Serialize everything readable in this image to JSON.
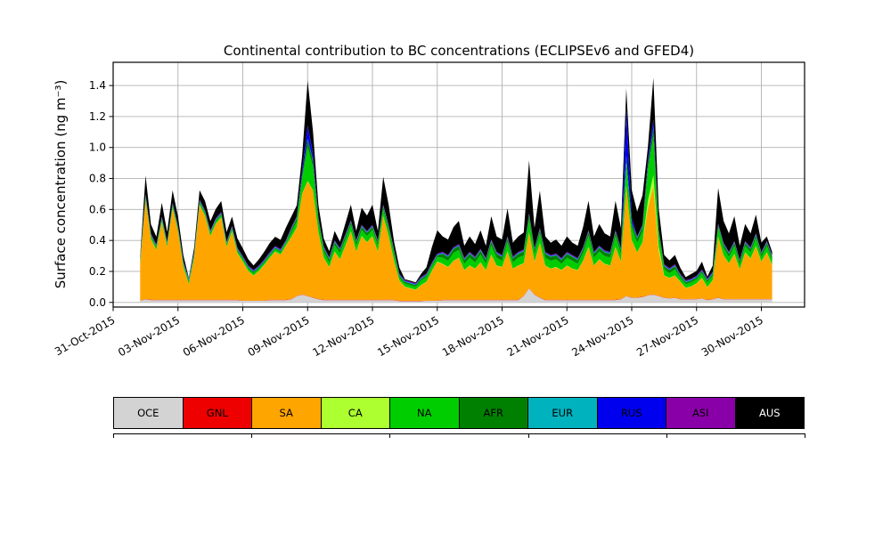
{
  "figure": {
    "title": "Continental contribution to BC concentrations (ECLIPSEv6 and GFED4)",
    "ylabel": "Surface concentration (ng m⁻³)"
  },
  "chart_data": {
    "type": "area",
    "stacked": true,
    "title": "Continental contribution to BC concentrations (ECLIPSEv6 and GFED4)",
    "xlabel": "",
    "ylabel": "Surface concentration (ng m⁻³)",
    "x_unit": "days since 31-Oct-2015 00:00",
    "xlim": [
      0,
      32
    ],
    "ylim": [
      -0.03,
      1.55
    ],
    "grid": true,
    "legend_position": "bottom",
    "yticks": [
      0.0,
      0.2,
      0.4,
      0.6,
      0.8,
      1.0,
      1.2,
      1.4
    ],
    "xticks": {
      "positions": [
        0,
        3,
        6,
        9,
        12,
        15,
        18,
        21,
        24,
        27,
        30
      ],
      "labels": [
        "31-Oct-2015",
        "03-Nov-2015",
        "06-Nov-2015",
        "09-Nov-2015",
        "12-Nov-2015",
        "15-Nov-2015",
        "18-Nov-2015",
        "21-Nov-2015",
        "24-Nov-2015",
        "27-Nov-2015",
        "30-Nov-2015"
      ]
    },
    "legend": [
      {
        "label": "OCE",
        "color": "#d3d3d3",
        "text_color": "#000000"
      },
      {
        "label": "GNL",
        "color": "#ee0000",
        "text_color": "#000000"
      },
      {
        "label": "SA",
        "color": "#ffa500",
        "text_color": "#000000"
      },
      {
        "label": "CA",
        "color": "#adff2f",
        "text_color": "#000000"
      },
      {
        "label": "NA",
        "color": "#00cd00",
        "text_color": "#000000"
      },
      {
        "label": "AFR",
        "color": "#008000",
        "text_color": "#000000"
      },
      {
        "label": "EUR",
        "color": "#00b2be",
        "text_color": "#000000"
      },
      {
        "label": "RUS",
        "color": "#0000ee",
        "text_color": "#000000"
      },
      {
        "label": "ASI",
        "color": "#8a00a8",
        "text_color": "#000000"
      },
      {
        "label": "AUS",
        "color": "#000000",
        "text_color": "#ffffff"
      }
    ],
    "x": {
      "start_day": 1.25,
      "step_day": 0.25,
      "count": 118
    },
    "series": [
      {
        "name": "OCE",
        "color": "#d3d3d3",
        "values": [
          0.01,
          0.02,
          0.015,
          0.015,
          0.015,
          0.015,
          0.015,
          0.015,
          0.015,
          0.015,
          0.015,
          0.015,
          0.015,
          0.015,
          0.015,
          0.015,
          0.015,
          0.015,
          0.015,
          0.01,
          0.01,
          0.01,
          0.01,
          0.01,
          0.015,
          0.015,
          0.015,
          0.015,
          0.02,
          0.04,
          0.05,
          0.04,
          0.03,
          0.02,
          0.015,
          0.015,
          0.015,
          0.015,
          0.015,
          0.015,
          0.015,
          0.015,
          0.015,
          0.015,
          0.015,
          0.015,
          0.015,
          0.015,
          0.008,
          0.008,
          0.008,
          0.008,
          0.008,
          0.01,
          0.01,
          0.01,
          0.015,
          0.015,
          0.015,
          0.015,
          0.015,
          0.015,
          0.015,
          0.015,
          0.015,
          0.015,
          0.015,
          0.015,
          0.015,
          0.015,
          0.015,
          0.04,
          0.09,
          0.05,
          0.03,
          0.015,
          0.015,
          0.015,
          0.015,
          0.015,
          0.015,
          0.015,
          0.015,
          0.015,
          0.015,
          0.015,
          0.015,
          0.015,
          0.015,
          0.02,
          0.04,
          0.03,
          0.03,
          0.035,
          0.045,
          0.05,
          0.04,
          0.03,
          0.025,
          0.03,
          0.02,
          0.02,
          0.02,
          0.02,
          0.025,
          0.015,
          0.02,
          0.03,
          0.02,
          0.02,
          0.02,
          0.02,
          0.02,
          0.02,
          0.02,
          0.02,
          0.02,
          0.02
        ]
      },
      {
        "name": "GNL",
        "color": "#ee0000",
        "values": 0.002
      },
      {
        "name": "SA",
        "color": "#ffa500",
        "values": [
          0.24,
          0.64,
          0.39,
          0.32,
          0.5,
          0.34,
          0.59,
          0.44,
          0.21,
          0.1,
          0.27,
          0.61,
          0.54,
          0.41,
          0.49,
          0.53,
          0.34,
          0.44,
          0.3,
          0.25,
          0.19,
          0.16,
          0.19,
          0.23,
          0.27,
          0.31,
          0.29,
          0.35,
          0.4,
          0.44,
          0.65,
          0.74,
          0.69,
          0.43,
          0.27,
          0.21,
          0.31,
          0.26,
          0.35,
          0.44,
          0.31,
          0.41,
          0.37,
          0.41,
          0.31,
          0.54,
          0.41,
          0.25,
          0.13,
          0.09,
          0.08,
          0.07,
          0.1,
          0.12,
          0.19,
          0.25,
          0.23,
          0.21,
          0.25,
          0.27,
          0.19,
          0.22,
          0.2,
          0.24,
          0.19,
          0.29,
          0.22,
          0.21,
          0.31,
          0.2,
          0.22,
          0.21,
          0.36,
          0.21,
          0.35,
          0.22,
          0.2,
          0.21,
          0.19,
          0.22,
          0.2,
          0.19,
          0.25,
          0.34,
          0.22,
          0.26,
          0.23,
          0.22,
          0.34,
          0.24,
          0.71,
          0.37,
          0.29,
          0.35,
          0.56,
          0.7,
          0.29,
          0.14,
          0.13,
          0.14,
          0.11,
          0.07,
          0.08,
          0.1,
          0.13,
          0.08,
          0.12,
          0.39,
          0.28,
          0.23,
          0.29,
          0.19,
          0.3,
          0.26,
          0.34,
          0.24,
          0.3,
          0.22
        ]
      },
      {
        "name": "CA",
        "color": "#adff2f",
        "values": {
          "const": 0.002,
          "overrides": {
            "94": 0.05,
            "95": 0.07,
            "96": 0.03
          }
        }
      },
      {
        "name": "NA",
        "color": "#00cd00",
        "values": [
          0.015,
          0.015,
          0.015,
          0.015,
          0.015,
          0.015,
          0.015,
          0.015,
          0.015,
          0.015,
          0.015,
          0.015,
          0.015,
          0.015,
          0.015,
          0.015,
          0.015,
          0.015,
          0.015,
          0.015,
          0.015,
          0.015,
          0.015,
          0.015,
          0.015,
          0.015,
          0.015,
          0.015,
          0.03,
          0.04,
          0.1,
          0.22,
          0.15,
          0.06,
          0.04,
          0.03,
          0.04,
          0.04,
          0.04,
          0.04,
          0.04,
          0.04,
          0.04,
          0.04,
          0.04,
          0.04,
          0.04,
          0.04,
          0.02,
          0.02,
          0.02,
          0.02,
          0.03,
          0.03,
          0.03,
          0.03,
          0.04,
          0.04,
          0.05,
          0.05,
          0.04,
          0.05,
          0.04,
          0.05,
          0.04,
          0.06,
          0.05,
          0.04,
          0.06,
          0.04,
          0.05,
          0.05,
          0.08,
          0.05,
          0.06,
          0.05,
          0.05,
          0.05,
          0.04,
          0.05,
          0.05,
          0.04,
          0.05,
          0.07,
          0.05,
          0.05,
          0.05,
          0.05,
          0.07,
          0.05,
          0.15,
          0.08,
          0.06,
          0.07,
          0.2,
          0.25,
          0.08,
          0.04,
          0.03,
          0.04,
          0.025,
          0.025,
          0.025,
          0.025,
          0.03,
          0.03,
          0.03,
          0.06,
          0.05,
          0.04,
          0.05,
          0.03,
          0.04,
          0.04,
          0.05,
          0.03,
          0.04,
          0.03
        ]
      },
      {
        "name": "AFR",
        "color": "#008000",
        "values": [
          0.008,
          0.008,
          0.008,
          0.008,
          0.008,
          0.008,
          0.008,
          0.008,
          0.008,
          0.008,
          0.008,
          0.008,
          0.008,
          0.008,
          0.008,
          0.008,
          0.008,
          0.008,
          0.008,
          0.008,
          0.008,
          0.008,
          0.008,
          0.008,
          0.008,
          0.008,
          0.008,
          0.008,
          0.02,
          0.02,
          0.02,
          0.05,
          0.04,
          0.02,
          0.02,
          0.02,
          0.02,
          0.02,
          0.02,
          0.02,
          0.02,
          0.02,
          0.02,
          0.02,
          0.02,
          0.02,
          0.02,
          0.02,
          0.01,
          0.01,
          0.01,
          0.01,
          0.01,
          0.01,
          0.01,
          0.01,
          0.025,
          0.025,
          0.025,
          0.025,
          0.025,
          0.025,
          0.025,
          0.025,
          0.025,
          0.025,
          0.025,
          0.025,
          0.025,
          0.025,
          0.025,
          0.025,
          0.03,
          0.025,
          0.025,
          0.025,
          0.025,
          0.025,
          0.025,
          0.025,
          0.025,
          0.025,
          0.025,
          0.025,
          0.025,
          0.025,
          0.025,
          0.025,
          0.025,
          0.025,
          0.04,
          0.025,
          0.03,
          0.03,
          0.03,
          0.05,
          0.02,
          0.02,
          0.02,
          0.02,
          0.012,
          0.012,
          0.012,
          0.012,
          0.012,
          0.012,
          0.012,
          0.012,
          0.02,
          0.02,
          0.02,
          0.02,
          0.02,
          0.02,
          0.02,
          0.02,
          0.02,
          0.02
        ]
      },
      {
        "name": "EUR",
        "color": "#00b2be",
        "values": 0.004
      },
      {
        "name": "RUS",
        "color": "#0000ee",
        "values": {
          "const": 0.004,
          "overrides": {
            "30": 0.03,
            "31": 0.08,
            "32": 0.04,
            "90": 0.3,
            "91": 0.03,
            "94": 0.03,
            "95": 0.05
          }
        }
      },
      {
        "name": "ASI",
        "color": "#8a00a8",
        "values": 0.004
      },
      {
        "name": "AUS",
        "color": "#000000",
        "values": [
          0.01,
          0.12,
          0.06,
          0.05,
          0.09,
          0.06,
          0.08,
          0.06,
          0.04,
          0.005,
          0.03,
          0.06,
          0.06,
          0.06,
          0.06,
          0.07,
          0.06,
          0.06,
          0.06,
          0.05,
          0.04,
          0.03,
          0.04,
          0.05,
          0.06,
          0.06,
          0.06,
          0.08,
          0.07,
          0.07,
          0.09,
          0.29,
          0.14,
          0.08,
          0.05,
          0.04,
          0.06,
          0.04,
          0.07,
          0.1,
          0.06,
          0.11,
          0.1,
          0.13,
          0.06,
          0.18,
          0.13,
          0.05,
          0.04,
          0.006,
          0.006,
          0.006,
          0.02,
          0.04,
          0.1,
          0.15,
          0.1,
          0.1,
          0.13,
          0.15,
          0.08,
          0.1,
          0.08,
          0.12,
          0.08,
          0.15,
          0.1,
          0.1,
          0.18,
          0.09,
          0.1,
          0.11,
          0.34,
          0.13,
          0.24,
          0.1,
          0.08,
          0.09,
          0.08,
          0.1,
          0.08,
          0.08,
          0.13,
          0.19,
          0.1,
          0.14,
          0.11,
          0.1,
          0.19,
          0.13,
          0.13,
          0.18,
          0.16,
          0.19,
          0.08,
          0.27,
          0.13,
          0.06,
          0.05,
          0.06,
          0.04,
          0.02,
          0.03,
          0.03,
          0.05,
          0.014,
          0.04,
          0.23,
          0.14,
          0.12,
          0.16,
          0.09,
          0.11,
          0.09,
          0.12,
          0.06,
          0.03,
          0.02
        ]
      }
    ]
  }
}
